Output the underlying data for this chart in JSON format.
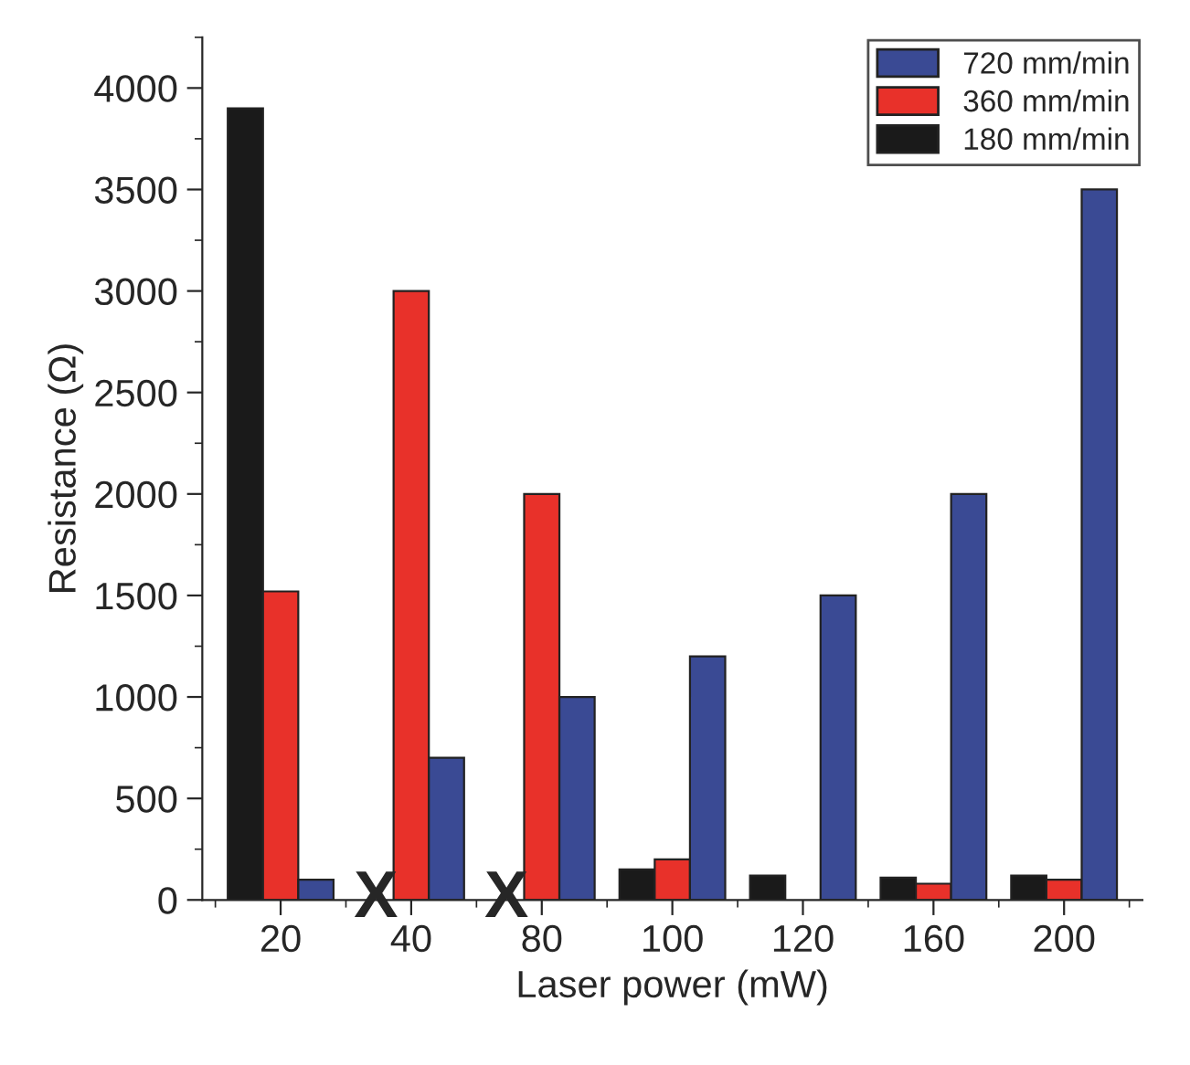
{
  "chart_data": {
    "type": "bar",
    "xlabel": "Laser power (mW)",
    "ylabel": "Resistance (Ω)",
    "categories": [
      "20",
      "40",
      "80",
      "100",
      "120",
      "160",
      "200"
    ],
    "series": [
      {
        "name": "180 mm/min",
        "color": "#1a1a1a",
        "values": [
          3900,
          null,
          null,
          150,
          120,
          110,
          120
        ]
      },
      {
        "name": "360 mm/min",
        "color": "#e8312a",
        "values": [
          1520,
          3000,
          2000,
          200,
          null,
          80,
          100
        ]
      },
      {
        "name": "720 mm/min",
        "color": "#3a4a94",
        "values": [
          100,
          700,
          1000,
          1200,
          1500,
          2000,
          3500
        ]
      }
    ],
    "ylim": [
      0,
      4250
    ],
    "yticks": [
      0,
      500,
      1000,
      1500,
      2000,
      2500,
      3000,
      3500,
      4000
    ],
    "annotations": [
      {
        "text": "X",
        "x": "40",
        "y": 0
      },
      {
        "text": "X",
        "x": "80",
        "y": 0
      }
    ],
    "legend": "top right",
    "grid": false
  }
}
